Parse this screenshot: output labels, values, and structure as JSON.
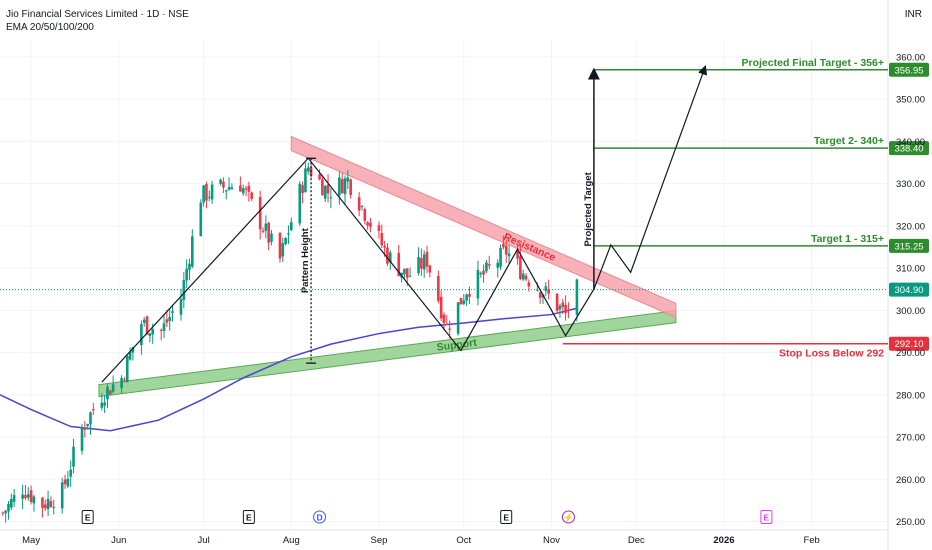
{
  "header": {
    "title": "Jio Financial Services Limited · 1D · NSE",
    "indicator": "EMA 20/50/100/200",
    "currency": "INR"
  },
  "annotations": {
    "resistance": "Resistance",
    "support": "Support",
    "pattern_height": "Pattern Height",
    "projected_target": "Projected Target"
  },
  "levels": {
    "final": {
      "label": "Projected Final Target - 356+",
      "badge": "356.95",
      "value": 356.95
    },
    "t2": {
      "label": "Target 2- 340+",
      "badge": "338.40",
      "value": 338.4
    },
    "t1": {
      "label": "Target 1 - 315+",
      "badge": "315.25",
      "value": 315.25
    },
    "current": {
      "badge": "304.90",
      "value": 304.9
    },
    "stop": {
      "label": "Stop Loss Below 292",
      "badge": "292.10",
      "value": 292.1
    }
  },
  "events": [
    {
      "symbol": "E",
      "date": "2025-05-21",
      "kind": "earnings"
    },
    {
      "symbol": "E",
      "date": "2025-07-17",
      "kind": "earnings"
    },
    {
      "symbol": "D",
      "date": "2025-08-11",
      "kind": "dividend"
    },
    {
      "symbol": "E",
      "date": "2025-10-16",
      "kind": "earnings"
    },
    {
      "symbol": "⚡",
      "date": "2025-11-07",
      "kind": "split"
    },
    {
      "symbol": "E",
      "date": "2026-01-16",
      "kind": "earnings-upcoming"
    }
  ],
  "colors": {
    "up": "#089981",
    "down": "#f23645",
    "ema": "#4a42d6",
    "resistance": "#f7a3ab",
    "support": "#8fcf8a",
    "target": "#2e8b2e",
    "stop": "#e5303d"
  },
  "chart_data": {
    "type": "candlestick",
    "title": "Jio Financial Services Limited · 1D · NSE",
    "ylabel": "INR",
    "ylim": [
      248,
      364
    ],
    "xlim": [
      "2025-04-20",
      "2026-02-28"
    ],
    "y_ticks": [
      250,
      260,
      270,
      280,
      290,
      300,
      310,
      320,
      330,
      340,
      350,
      360
    ],
    "x_ticks": [
      {
        "label": "May",
        "date": "2025-05-01"
      },
      {
        "label": "Jun",
        "date": "2025-06-01"
      },
      {
        "label": "Jul",
        "date": "2025-07-01"
      },
      {
        "label": "Aug",
        "date": "2025-08-01"
      },
      {
        "label": "Sep",
        "date": "2025-09-01"
      },
      {
        "label": "Oct",
        "date": "2025-10-01"
      },
      {
        "label": "Nov",
        "date": "2025-11-01"
      },
      {
        "label": "Dec",
        "date": "2025-12-01"
      },
      {
        "label": "2026",
        "date": "2026-01-01",
        "bold": true
      },
      {
        "label": "Feb",
        "date": "2026-02-01"
      }
    ],
    "price_path": [
      [
        "2025-04-21",
        252
      ],
      [
        "2025-04-28",
        258
      ],
      [
        "2025-05-05",
        254
      ],
      [
        "2025-05-12",
        257
      ],
      [
        "2025-05-19",
        272
      ],
      [
        "2025-05-26",
        280
      ],
      [
        "2025-06-02",
        284
      ],
      [
        "2025-06-09",
        297
      ],
      [
        "2025-06-16",
        295
      ],
      [
        "2025-06-23",
        303
      ],
      [
        "2025-06-30",
        327
      ],
      [
        "2025-07-07",
        329
      ],
      [
        "2025-07-14",
        330
      ],
      [
        "2025-07-21",
        321
      ],
      [
        "2025-07-28",
        312
      ],
      [
        "2025-08-04",
        328
      ],
      [
        "2025-08-07",
        334
      ],
      [
        "2025-08-14",
        328
      ],
      [
        "2025-08-21",
        331
      ],
      [
        "2025-08-28",
        322
      ],
      [
        "2025-09-04",
        313
      ],
      [
        "2025-09-11",
        308
      ],
      [
        "2025-09-18",
        312
      ],
      [
        "2025-09-25",
        296
      ],
      [
        "2025-10-02",
        305
      ],
      [
        "2025-10-09",
        309
      ],
      [
        "2025-10-16",
        314
      ],
      [
        "2025-10-23",
        308
      ],
      [
        "2025-10-30",
        304
      ],
      [
        "2025-11-06",
        299
      ],
      [
        "2025-11-10",
        304.9
      ]
    ],
    "ema_200": [
      [
        "2025-04-20",
        280
      ],
      [
        "2025-05-01",
        276.5
      ],
      [
        "2025-05-15",
        272.5
      ],
      [
        "2025-05-29",
        271.5
      ],
      [
        "2025-06-15",
        274
      ],
      [
        "2025-07-01",
        279
      ],
      [
        "2025-07-15",
        284
      ],
      [
        "2025-08-01",
        289
      ],
      [
        "2025-08-15",
        292
      ],
      [
        "2025-09-01",
        294.5
      ],
      [
        "2025-09-15",
        296
      ],
      [
        "2025-10-01",
        297
      ],
      [
        "2025-10-15",
        298
      ],
      [
        "2025-11-01",
        299
      ],
      [
        "2025-11-10",
        300.5
      ]
    ],
    "resistance_line": {
      "start": [
        "2025-08-01",
        339.5
      ],
      "end": [
        "2025-12-15",
        300
      ]
    },
    "support_line": {
      "start": [
        "2025-05-25",
        281
      ],
      "end": [
        "2025-12-15",
        298.5
      ]
    },
    "pattern_path": [
      [
        "2025-05-26",
        283
      ],
      [
        "2025-08-07",
        336
      ],
      [
        "2025-09-30",
        290.5
      ],
      [
        "2025-10-20",
        314.5
      ],
      [
        "2025-11-06",
        294
      ],
      [
        "2025-11-16",
        305
      ],
      [
        "2025-11-22",
        315.5
      ],
      [
        "2025-11-29",
        309
      ],
      [
        "2025-12-25",
        357
      ]
    ],
    "pattern_height": {
      "date": "2025-08-08",
      "top": 336,
      "bottom": 287.5
    },
    "projected_arrow": {
      "date": "2025-11-16",
      "from": 305,
      "to": 357
    }
  }
}
